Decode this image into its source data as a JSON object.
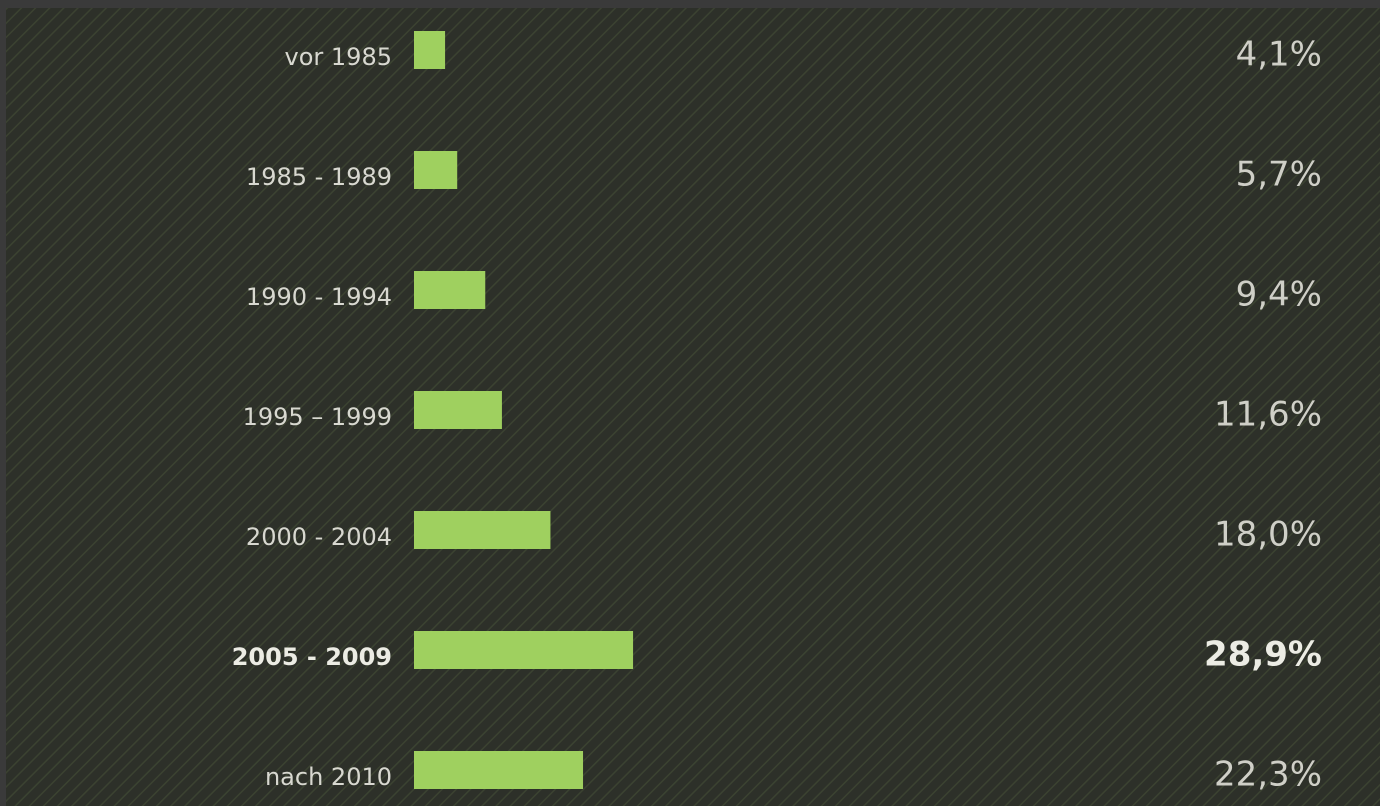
{
  "chart_data": {
    "type": "bar",
    "orientation": "horizontal",
    "categories": [
      "vor 1985",
      "1985 - 1989",
      "1990 - 1994",
      "1995 – 1999",
      "2000 - 2004",
      "2005 - 2009",
      "nach 2010"
    ],
    "values": [
      4.1,
      5.7,
      9.4,
      11.6,
      18.0,
      28.9,
      22.3
    ],
    "value_labels": [
      "4,1%",
      "5,7%",
      "9,4%",
      "11,6%",
      "18,0%",
      "28,9%",
      "22,3%"
    ],
    "color": "#9fd05f",
    "highlight": 5
  }
}
